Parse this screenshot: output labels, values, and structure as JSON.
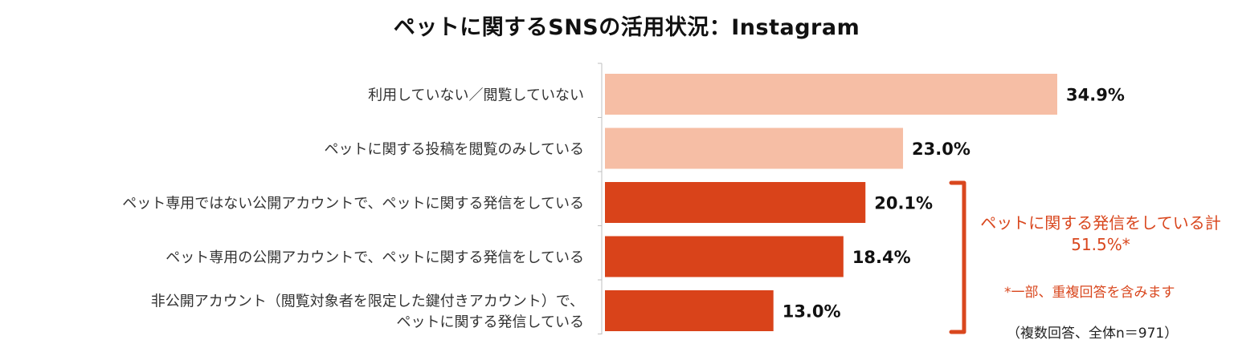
{
  "chart_data": {
    "type": "bar",
    "orientation": "horizontal",
    "title": "ペットに関するSNSの活用状況：Instagram",
    "categories": [
      [
        "利用していない／閲覧していない"
      ],
      [
        "ペットに関する投稿を閲覧のみしている"
      ],
      [
        "ペット専用ではない公開アカウントで、ペットに関する発信をしている"
      ],
      [
        "ペット専用の公開アカウントで、ペットに関する発信をしている"
      ],
      [
        "非公開アカウント（閲覧対象者を限定した鍵付きアカウント）で、",
        "ペットに関する発信している"
      ]
    ],
    "values": [
      34.9,
      23.0,
      20.1,
      18.4,
      13.0
    ],
    "value_labels": [
      "34.9%",
      "23.0%",
      "20.1%",
      "18.4%",
      "13.0%"
    ],
    "bar_colors": [
      "#f6bea5",
      "#f6bea5",
      "#d9431a",
      "#d9431a",
      "#d9431a"
    ],
    "xlim": [
      0,
      40
    ],
    "grid": false,
    "legend": "none",
    "annotations": {
      "bracket_line1": "ペットに関する発信をしている計",
      "bracket_line2": "51.5%*",
      "footnote": "*一部、重複回答を含みます",
      "sample_note": "（複数回答、全体n＝971）"
    },
    "accent_color": "#d9471e"
  }
}
